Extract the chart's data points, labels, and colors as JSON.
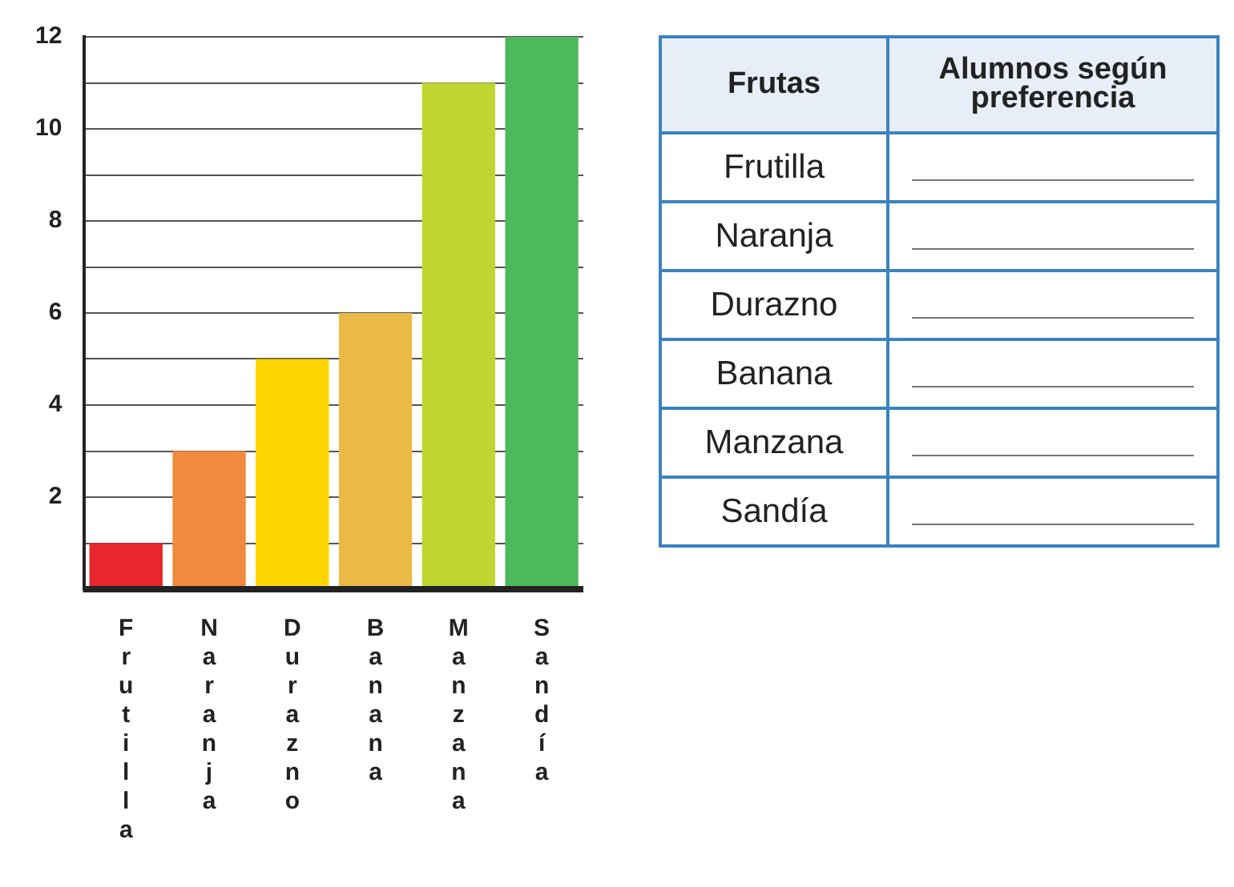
{
  "chart_data": [
    {
      "type": "bar",
      "categories": [
        "Frutilla",
        "Naranja",
        "Durazno",
        "Banana",
        "Manzana",
        "Sandía"
      ],
      "values": [
        1,
        3,
        5,
        6,
        11,
        12
      ],
      "colors": [
        "#e8262b",
        "#f08a3c",
        "#fdd500",
        "#ebb945",
        "#bfd630",
        "#4cb95a"
      ],
      "ylim": [
        0,
        12
      ],
      "yticks": [
        {
          "value": 0,
          "label": null
        },
        {
          "value": 1,
          "label": null
        },
        2,
        {
          "value": 3,
          "label": null
        },
        4,
        {
          "value": 5,
          "label": null
        },
        6,
        {
          "value": 7,
          "label": null
        },
        8,
        {
          "value": 9,
          "label": null
        },
        10,
        {
          "value": 11,
          "label": null
        },
        12
      ],
      "grid": "y",
      "legend": false
    },
    {
      "type": "other",
      "annotations": [
        "Frutas",
        "Alumnos según preferencia",
        "Frutilla",
        "Naranja",
        "Durazno",
        "Banana",
        "Manzana",
        "Sandía"
      ]
    }
  ]
}
